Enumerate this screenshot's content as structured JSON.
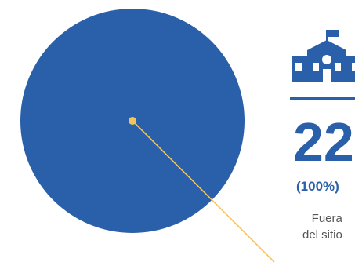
{
  "chart_data": {
    "type": "pie",
    "title": "",
    "slices": [
      {
        "count": "22",
        "percent": "(100%)",
        "value": 100,
        "color": "#2a5fa9",
        "icon": "school-building-icon",
        "label_lines": [
          "Fuera",
          "del sitio"
        ]
      }
    ],
    "leader_color": "#f6c35a"
  },
  "colors": {
    "accent": "#2a5fa9",
    "leader": "#f6c35a",
    "text_muted": "#555555"
  }
}
